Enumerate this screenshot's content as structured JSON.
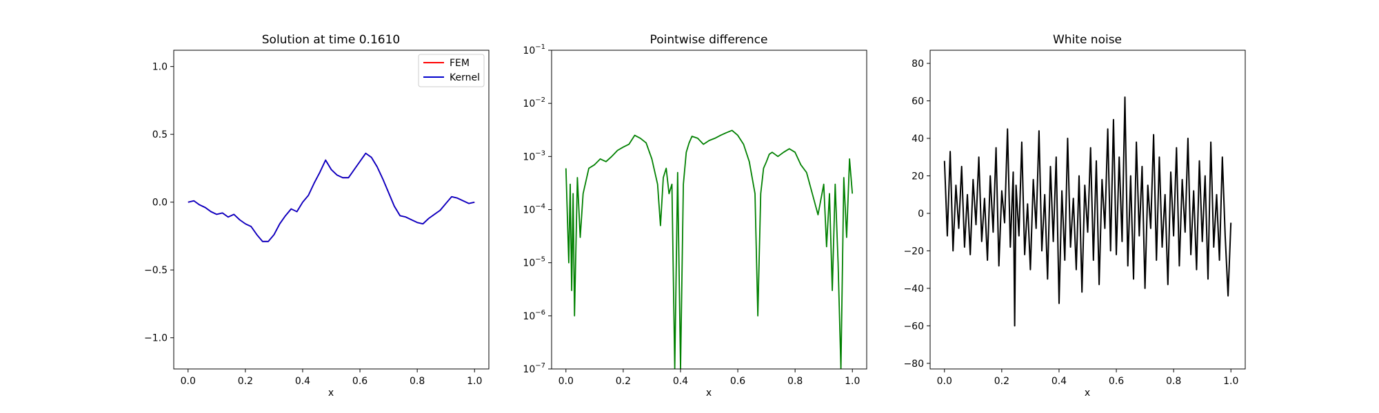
{
  "chart_data": [
    {
      "type": "line",
      "title": "Solution at time 0.1610",
      "xlabel": "x",
      "ylabel": "",
      "xlim": [
        -0.05,
        1.05
      ],
      "ylim": [
        -1.23,
        1.12
      ],
      "xticks": [
        "0.0",
        "0.2",
        "0.4",
        "0.6",
        "0.8",
        "1.0"
      ],
      "yticks": [
        "−1.0",
        "−0.5",
        "0.0",
        "0.5",
        "1.0"
      ],
      "legend": "top-right",
      "series": [
        {
          "name": "FEM",
          "color": "#ff0000",
          "x": [
            0.0,
            0.02,
            0.04,
            0.06,
            0.08,
            0.1,
            0.12,
            0.14,
            0.16,
            0.18,
            0.2,
            0.22,
            0.24,
            0.26,
            0.28,
            0.3,
            0.32,
            0.34,
            0.36,
            0.38,
            0.4,
            0.42,
            0.44,
            0.46,
            0.48,
            0.5,
            0.52,
            0.54,
            0.56,
            0.58,
            0.6,
            0.62,
            0.64,
            0.66,
            0.68,
            0.7,
            0.72,
            0.74,
            0.76,
            0.78,
            0.8,
            0.82,
            0.84,
            0.86,
            0.88,
            0.9,
            0.92,
            0.94,
            0.96,
            0.98,
            1.0
          ],
          "y": [
            0.0,
            0.01,
            -0.02,
            -0.04,
            -0.07,
            -0.09,
            -0.08,
            -0.11,
            -0.09,
            -0.13,
            -0.16,
            -0.18,
            -0.24,
            -0.29,
            -0.29,
            -0.24,
            -0.16,
            -0.1,
            -0.05,
            -0.07,
            0.0,
            0.05,
            0.14,
            0.22,
            0.31,
            0.24,
            0.2,
            0.18,
            0.18,
            0.24,
            0.3,
            0.36,
            0.33,
            0.26,
            0.17,
            0.07,
            -0.03,
            -0.1,
            -0.11,
            -0.13,
            -0.15,
            -0.16,
            -0.12,
            -0.09,
            -0.06,
            -0.01,
            0.04,
            0.03,
            0.01,
            -0.01,
            0.0
          ]
        },
        {
          "name": "Kernel",
          "color": "#0000cc",
          "x": [
            0.0,
            0.02,
            0.04,
            0.06,
            0.08,
            0.1,
            0.12,
            0.14,
            0.16,
            0.18,
            0.2,
            0.22,
            0.24,
            0.26,
            0.28,
            0.3,
            0.32,
            0.34,
            0.36,
            0.38,
            0.4,
            0.42,
            0.44,
            0.46,
            0.48,
            0.5,
            0.52,
            0.54,
            0.56,
            0.58,
            0.6,
            0.62,
            0.64,
            0.66,
            0.68,
            0.7,
            0.72,
            0.74,
            0.76,
            0.78,
            0.8,
            0.82,
            0.84,
            0.86,
            0.88,
            0.9,
            0.92,
            0.94,
            0.96,
            0.98,
            1.0
          ],
          "y": [
            0.0,
            0.01,
            -0.02,
            -0.04,
            -0.07,
            -0.09,
            -0.08,
            -0.11,
            -0.09,
            -0.13,
            -0.16,
            -0.18,
            -0.24,
            -0.29,
            -0.29,
            -0.24,
            -0.16,
            -0.1,
            -0.05,
            -0.07,
            0.0,
            0.05,
            0.14,
            0.22,
            0.31,
            0.24,
            0.2,
            0.18,
            0.18,
            0.24,
            0.3,
            0.36,
            0.33,
            0.26,
            0.17,
            0.07,
            -0.03,
            -0.1,
            -0.11,
            -0.13,
            -0.15,
            -0.16,
            -0.12,
            -0.09,
            -0.06,
            -0.01,
            0.04,
            0.03,
            0.01,
            -0.01,
            0.0
          ]
        }
      ]
    },
    {
      "type": "line",
      "title": "Pointwise difference",
      "xlabel": "x",
      "ylabel": "",
      "xlim": [
        -0.05,
        1.05
      ],
      "ylim": [
        1e-07,
        0.1
      ],
      "yscale": "log",
      "xticks": [
        "0.0",
        "0.2",
        "0.4",
        "0.6",
        "0.8",
        "1.0"
      ],
      "yticks": [
        {
          "base": "10",
          "exp": "−7"
        },
        {
          "base": "10",
          "exp": "−6"
        },
        {
          "base": "10",
          "exp": "−5"
        },
        {
          "base": "10",
          "exp": "−4"
        },
        {
          "base": "10",
          "exp": "−3"
        },
        {
          "base": "10",
          "exp": "−2"
        },
        {
          "base": "10",
          "exp": "−1"
        }
      ],
      "series": [
        {
          "color": "#008000",
          "x": [
            0.0,
            0.01,
            0.015,
            0.02,
            0.025,
            0.03,
            0.04,
            0.05,
            0.06,
            0.08,
            0.1,
            0.12,
            0.14,
            0.16,
            0.18,
            0.2,
            0.22,
            0.24,
            0.26,
            0.28,
            0.3,
            0.32,
            0.33,
            0.34,
            0.35,
            0.36,
            0.37,
            0.38,
            0.39,
            0.4,
            0.41,
            0.42,
            0.43,
            0.44,
            0.46,
            0.48,
            0.5,
            0.52,
            0.54,
            0.56,
            0.58,
            0.6,
            0.62,
            0.64,
            0.66,
            0.67,
            0.68,
            0.69,
            0.7,
            0.71,
            0.72,
            0.74,
            0.76,
            0.78,
            0.8,
            0.82,
            0.84,
            0.86,
            0.88,
            0.9,
            0.91,
            0.92,
            0.93,
            0.94,
            0.95,
            0.96,
            0.97,
            0.98,
            0.99,
            1.0
          ],
          "y": [
            0.0006,
            1e-05,
            0.0003,
            3e-06,
            0.0002,
            1e-06,
            0.0004,
            3e-05,
            0.0002,
            0.0006,
            0.0007,
            0.0009,
            0.0008,
            0.001,
            0.0013,
            0.0015,
            0.0017,
            0.0025,
            0.0022,
            0.0018,
            0.0009,
            0.0003,
            5e-05,
            0.0004,
            0.0006,
            0.0002,
            0.0003,
            1e-07,
            0.0005,
            1e-07,
            0.0003,
            0.0012,
            0.0018,
            0.0024,
            0.0022,
            0.0017,
            0.002,
            0.0022,
            0.0025,
            0.0028,
            0.0031,
            0.0025,
            0.0017,
            0.0008,
            0.0002,
            1e-06,
            0.0002,
            0.0006,
            0.0008,
            0.0011,
            0.0012,
            0.001,
            0.0012,
            0.0014,
            0.0012,
            0.0007,
            0.0005,
            0.0002,
            8e-05,
            0.0003,
            2e-05,
            0.0002,
            3e-06,
            0.0003,
            1e-05,
            1e-07,
            0.0004,
            3e-05,
            0.0009,
            0.0002
          ]
        }
      ]
    },
    {
      "type": "line",
      "title": "White noise",
      "xlabel": "x",
      "ylabel": "",
      "xlim": [
        -0.05,
        1.05
      ],
      "ylim": [
        -83,
        87
      ],
      "xticks": [
        "0.0",
        "0.2",
        "0.4",
        "0.6",
        "0.8",
        "1.0"
      ],
      "yticks": [
        "−80",
        "−60",
        "−40",
        "−20",
        "0",
        "20",
        "40",
        "60",
        "80"
      ],
      "series": [
        {
          "color": "#000000",
          "x": [
            0.0,
            0.01,
            0.02,
            0.03,
            0.04,
            0.05,
            0.06,
            0.07,
            0.08,
            0.09,
            0.1,
            0.11,
            0.12,
            0.13,
            0.14,
            0.15,
            0.16,
            0.17,
            0.18,
            0.19,
            0.2,
            0.21,
            0.22,
            0.23,
            0.24,
            0.245,
            0.25,
            0.26,
            0.27,
            0.28,
            0.29,
            0.3,
            0.31,
            0.32,
            0.33,
            0.34,
            0.35,
            0.36,
            0.37,
            0.38,
            0.39,
            0.4,
            0.41,
            0.42,
            0.43,
            0.44,
            0.45,
            0.46,
            0.47,
            0.48,
            0.49,
            0.5,
            0.51,
            0.52,
            0.53,
            0.54,
            0.55,
            0.56,
            0.57,
            0.58,
            0.59,
            0.6,
            0.61,
            0.62,
            0.63,
            0.64,
            0.65,
            0.66,
            0.67,
            0.68,
            0.69,
            0.7,
            0.71,
            0.72,
            0.73,
            0.74,
            0.75,
            0.76,
            0.77,
            0.78,
            0.79,
            0.8,
            0.81,
            0.82,
            0.83,
            0.84,
            0.85,
            0.86,
            0.87,
            0.88,
            0.89,
            0.9,
            0.91,
            0.92,
            0.93,
            0.94,
            0.95,
            0.96,
            0.97,
            0.98,
            0.99,
            1.0
          ],
          "y": [
            28,
            -12,
            33,
            -20,
            15,
            -8,
            25,
            -18,
            10,
            -22,
            18,
            -6,
            30,
            -15,
            8,
            -25,
            20,
            -10,
            35,
            -28,
            12,
            -5,
            45,
            -18,
            22,
            -60,
            15,
            -12,
            38,
            -22,
            5,
            -30,
            18,
            -8,
            44,
            -20,
            10,
            -35,
            25,
            -15,
            30,
            -48,
            12,
            -25,
            40,
            -18,
            8,
            -30,
            20,
            -42,
            15,
            -10,
            35,
            -25,
            28,
            -38,
            18,
            -8,
            45,
            -20,
            50,
            -22,
            30,
            -15,
            62,
            -28,
            20,
            -35,
            38,
            -12,
            25,
            -40,
            15,
            -8,
            42,
            -25,
            30,
            -18,
            10,
            -38,
            22,
            -12,
            35,
            -28,
            18,
            -10,
            40,
            -22,
            12,
            -30,
            28,
            -15,
            20,
            -35,
            38,
            -18,
            10,
            -25,
            30,
            -12,
            -44,
            -5
          ]
        }
      ]
    }
  ]
}
